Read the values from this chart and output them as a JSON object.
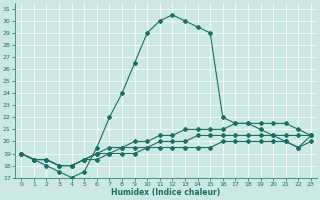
{
  "xlabel": "Humidex (Indice chaleur)",
  "bg_color": "#cce8e4",
  "line_color": "#1a6e64",
  "xlim": [
    -0.5,
    23.5
  ],
  "ylim": [
    17,
    31.5
  ],
  "xticks": [
    0,
    1,
    2,
    3,
    4,
    5,
    6,
    7,
    8,
    9,
    10,
    11,
    12,
    13,
    14,
    15,
    16,
    17,
    18,
    19,
    20,
    21,
    22,
    23
  ],
  "yticks": [
    17,
    18,
    19,
    20,
    21,
    22,
    23,
    24,
    25,
    26,
    27,
    28,
    29,
    30,
    31
  ],
  "series": [
    [
      19.0,
      18.5,
      18.0,
      17.5,
      17.0,
      17.5,
      19.5,
      22.0,
      24.0,
      26.5,
      29.0,
      30.0,
      30.5,
      30.0,
      29.5,
      29.0,
      22.0,
      21.5,
      21.5,
      21.0,
      20.5,
      20.0,
      19.5,
      20.5
    ],
    [
      19.0,
      18.5,
      18.5,
      18.0,
      18.0,
      18.5,
      19.0,
      19.5,
      19.5,
      20.0,
      20.0,
      20.5,
      20.5,
      21.0,
      21.0,
      21.0,
      21.0,
      21.5,
      21.5,
      21.5,
      21.5,
      21.5,
      21.0,
      20.5
    ],
    [
      19.0,
      18.5,
      18.5,
      18.0,
      18.0,
      18.5,
      19.0,
      19.0,
      19.5,
      19.5,
      19.5,
      20.0,
      20.0,
      20.0,
      20.5,
      20.5,
      20.5,
      20.5,
      20.5,
      20.5,
      20.5,
      20.5,
      20.5,
      20.5
    ],
    [
      19.0,
      18.5,
      18.5,
      18.0,
      18.0,
      18.5,
      18.5,
      19.0,
      19.0,
      19.0,
      19.5,
      19.5,
      19.5,
      19.5,
      19.5,
      19.5,
      20.0,
      20.0,
      20.0,
      20.0,
      20.0,
      20.0,
      19.5,
      20.0
    ]
  ]
}
